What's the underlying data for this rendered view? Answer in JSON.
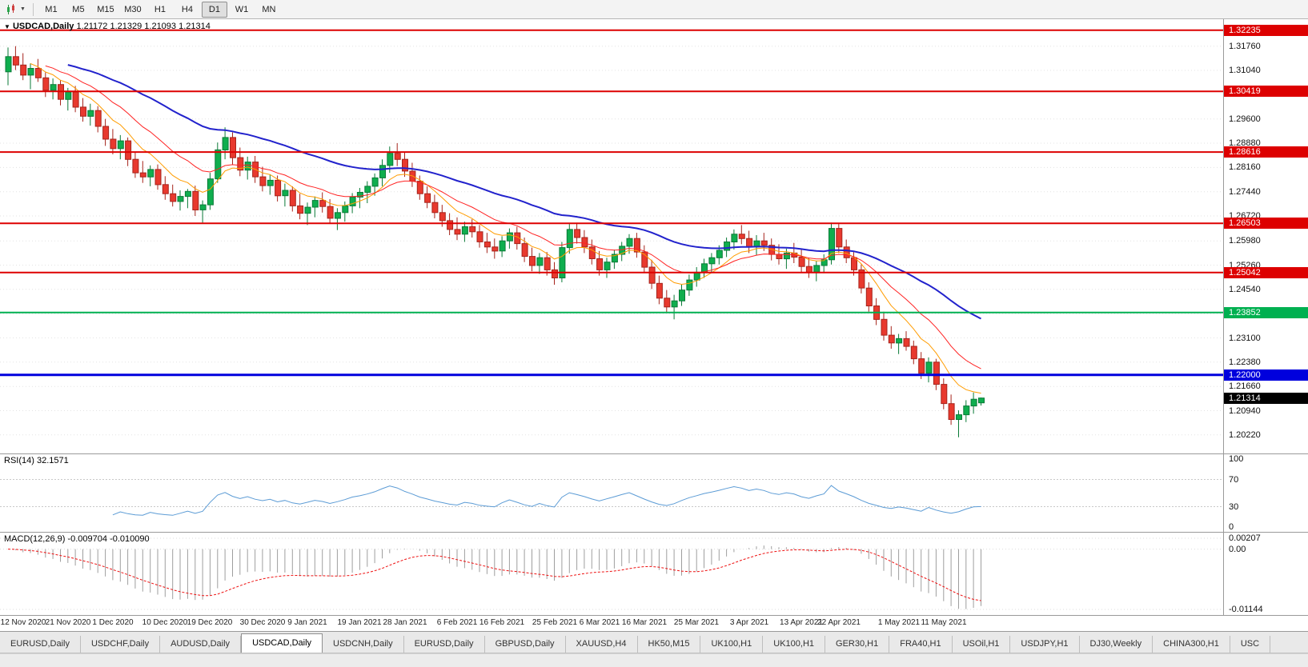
{
  "toolbar": {
    "timeframes": [
      "M1",
      "M5",
      "M15",
      "M30",
      "H1",
      "H4",
      "D1",
      "W1",
      "MN"
    ],
    "active": "D1"
  },
  "chart_data": {
    "type": "candlestick",
    "symbol": "USDCAD",
    "timeframe": "Daily",
    "header_title": "USDCAD,Daily",
    "header_ohlc": "1.21172 1.21329 1.21093 1.21314",
    "price_range": {
      "top": 1.3256,
      "bottom": 1.1967
    },
    "y_axis_labels": [
      "1.31760",
      "1.31040",
      "1.29600",
      "1.28880",
      "1.28160",
      "1.27440",
      "1.26720",
      "1.25980",
      "1.25260",
      "1.24540",
      "1.23820",
      "1.23100",
      "1.22380",
      "1.21660",
      "1.20940",
      "1.20220"
    ],
    "x_axis_labels": [
      [
        "12 Nov 2020",
        2
      ],
      [
        "21 Nov 2020",
        8
      ],
      [
        "1 Dec 2020",
        14
      ],
      [
        "10 Dec 2020",
        21
      ],
      [
        "19 Dec 2020",
        27
      ],
      [
        "30 Dec 2020",
        34
      ],
      [
        "9 Jan 2021",
        40
      ],
      [
        "19 Jan 2021",
        47
      ],
      [
        "28 Jan 2021",
        53
      ],
      [
        "6 Feb 2021",
        60
      ],
      [
        "16 Feb 2021",
        66
      ],
      [
        "25 Feb 2021",
        73
      ],
      [
        "6 Mar 2021",
        79
      ],
      [
        "16 Mar 2021",
        85
      ],
      [
        "25 Mar 2021",
        92
      ],
      [
        "3 Apr 2021",
        99
      ],
      [
        "13 Apr 2021",
        106
      ],
      [
        "22 Apr 2021",
        111
      ],
      [
        "1 May 2021",
        119
      ],
      [
        "11 May 2021",
        125
      ]
    ],
    "ma_periods": [
      8,
      16,
      42
    ],
    "hlines": [
      {
        "value": 1.32235,
        "label": "1.32235",
        "color": "#dd0000",
        "width": 2
      },
      {
        "value": 1.30419,
        "label": "1.30419",
        "color": "#dd0000",
        "width": 2
      },
      {
        "value": 1.28616,
        "label": "1.28616",
        "color": "#dd0000",
        "width": 2
      },
      {
        "value": 1.26503,
        "label": "1.26503",
        "color": "#dd0000",
        "width": 2
      },
      {
        "value": 1.25042,
        "label": "1.25042",
        "color": "#dd0000",
        "width": 2
      },
      {
        "value": 1.23852,
        "label": "1.23852",
        "color": "#00b050",
        "width": 2
      },
      {
        "value": 1.22,
        "label": "1.22000",
        "color": "#0000dd",
        "width": 3
      }
    ],
    "current_price": {
      "value": 1.21314,
      "label": "1.21314"
    },
    "rsi": {
      "header": "RSI(14) 32.1571",
      "period": 14,
      "current": 32.1571,
      "levels": [
        "100",
        "70",
        "30",
        "0"
      ]
    },
    "macd": {
      "header": "MACD(12,26,9) -0.009704 -0.010090",
      "fast": 12,
      "slow": 26,
      "signal": 9,
      "values": [
        -0.009704,
        -0.01009
      ],
      "axis": [
        "0.00207",
        "0.00",
        "-0.01144"
      ]
    },
    "colors": {
      "bull": "#0fae4e",
      "bull_border": "#0a7a37",
      "bear": "#e8392e",
      "bear_border": "#a6241c",
      "ma_fast": "#ff9c00",
      "ma_mid": "#ff2222",
      "ma_slow": "#2222cc",
      "rsi": "#5b9bd5",
      "macd_hist": "#9e9e9e",
      "macd_signal": "#ee1111"
    },
    "candles": [
      [
        1.31,
        1.3172,
        1.306,
        1.3145
      ],
      [
        1.3145,
        1.3176,
        1.3105,
        1.312
      ],
      [
        1.312,
        1.3155,
        1.3075,
        1.309
      ],
      [
        1.309,
        1.3125,
        1.3048,
        1.311
      ],
      [
        1.311,
        1.3138,
        1.307,
        1.3082
      ],
      [
        1.3082,
        1.3098,
        1.3025,
        1.3045
      ],
      [
        1.3045,
        1.308,
        1.3018,
        1.3062
      ],
      [
        1.3062,
        1.3075,
        1.3,
        1.3018
      ],
      [
        1.3018,
        1.3052,
        1.2985,
        1.304
      ],
      [
        1.304,
        1.3058,
        1.298,
        1.2995
      ],
      [
        1.2995,
        1.3022,
        1.2952,
        1.2968
      ],
      [
        1.2968,
        1.3005,
        1.294,
        1.2985
      ],
      [
        1.2985,
        1.2998,
        1.292,
        1.2938
      ],
      [
        1.2938,
        1.296,
        1.288,
        1.29
      ],
      [
        1.29,
        1.293,
        1.2855,
        1.2872
      ],
      [
        1.2872,
        1.2912,
        1.284,
        1.2895
      ],
      [
        1.2895,
        1.2905,
        1.282,
        1.284
      ],
      [
        1.284,
        1.2862,
        1.2785,
        1.28
      ],
      [
        1.28,
        1.2835,
        1.277,
        1.2788
      ],
      [
        1.2788,
        1.2822,
        1.276,
        1.281
      ],
      [
        1.281,
        1.2825,
        1.275,
        1.2765
      ],
      [
        1.2765,
        1.279,
        1.272,
        1.2738
      ],
      [
        1.2738,
        1.2765,
        1.27,
        1.2715
      ],
      [
        1.2715,
        1.2748,
        1.2688,
        1.273
      ],
      [
        1.273,
        1.2752,
        1.2695,
        1.2745
      ],
      [
        1.2745,
        1.2762,
        1.2672,
        1.269
      ],
      [
        1.269,
        1.2718,
        1.2652,
        1.2705
      ],
      [
        1.2705,
        1.28,
        1.269,
        1.2782
      ],
      [
        1.2782,
        1.289,
        1.277,
        1.2868
      ],
      [
        1.2868,
        1.2935,
        1.284,
        1.2905
      ],
      [
        1.2905,
        1.292,
        1.2825,
        1.2845
      ],
      [
        1.2845,
        1.2875,
        1.279,
        1.2808
      ],
      [
        1.2808,
        1.2848,
        1.278,
        1.2832
      ],
      [
        1.2832,
        1.285,
        1.277,
        1.2788
      ],
      [
        1.2788,
        1.2818,
        1.2745,
        1.2762
      ],
      [
        1.2762,
        1.2795,
        1.2735,
        1.2778
      ],
      [
        1.2778,
        1.2792,
        1.2715,
        1.2732
      ],
      [
        1.2732,
        1.2768,
        1.27,
        1.2748
      ],
      [
        1.2748,
        1.276,
        1.2685,
        1.2702
      ],
      [
        1.2702,
        1.2738,
        1.2662,
        1.268
      ],
      [
        1.268,
        1.2712,
        1.2645,
        1.2698
      ],
      [
        1.2698,
        1.273,
        1.2668,
        1.2718
      ],
      [
        1.2718,
        1.2742,
        1.2682,
        1.27
      ],
      [
        1.27,
        1.2722,
        1.2648,
        1.2665
      ],
      [
        1.2665,
        1.2695,
        1.263,
        1.2682
      ],
      [
        1.2682,
        1.2715,
        1.2655,
        1.2702
      ],
      [
        1.2702,
        1.274,
        1.268,
        1.2728
      ],
      [
        1.2728,
        1.2755,
        1.2695,
        1.2742
      ],
      [
        1.2742,
        1.2775,
        1.271,
        1.276
      ],
      [
        1.276,
        1.2798,
        1.2732,
        1.2785
      ],
      [
        1.2785,
        1.284,
        1.276,
        1.2822
      ],
      [
        1.2822,
        1.2878,
        1.28,
        1.2858
      ],
      [
        1.2858,
        1.2888,
        1.282,
        1.284
      ],
      [
        1.284,
        1.2862,
        1.2788,
        1.2805
      ],
      [
        1.2805,
        1.283,
        1.2758,
        1.2775
      ],
      [
        1.2775,
        1.2792,
        1.272,
        1.2738
      ],
      [
        1.2738,
        1.276,
        1.2695,
        1.2712
      ],
      [
        1.2712,
        1.2735,
        1.2665,
        1.2682
      ],
      [
        1.2682,
        1.2705,
        1.264,
        1.2658
      ],
      [
        1.2658,
        1.268,
        1.2615,
        1.2632
      ],
      [
        1.2632,
        1.2668,
        1.26,
        1.2618
      ],
      [
        1.2618,
        1.2655,
        1.2595,
        1.264
      ],
      [
        1.264,
        1.2662,
        1.2608,
        1.2625
      ],
      [
        1.2625,
        1.2645,
        1.2578,
        1.2595
      ],
      [
        1.2595,
        1.2622,
        1.2562,
        1.258
      ],
      [
        1.258,
        1.2605,
        1.2545,
        1.2568
      ],
      [
        1.2568,
        1.2612,
        1.255,
        1.2598
      ],
      [
        1.2598,
        1.2635,
        1.2575,
        1.2622
      ],
      [
        1.2622,
        1.264,
        1.2572,
        1.259
      ],
      [
        1.259,
        1.2608,
        1.2535,
        1.2552
      ],
      [
        1.2552,
        1.2578,
        1.2508,
        1.2525
      ],
      [
        1.2525,
        1.2562,
        1.25,
        1.2548
      ],
      [
        1.2548,
        1.2565,
        1.2495,
        1.2512
      ],
      [
        1.2512,
        1.2535,
        1.2468,
        1.2488
      ],
      [
        1.2488,
        1.2595,
        1.2475,
        1.2578
      ],
      [
        1.2578,
        1.2648,
        1.256,
        1.2632
      ],
      [
        1.2632,
        1.2652,
        1.259,
        1.2608
      ],
      [
        1.2608,
        1.263,
        1.2562,
        1.258
      ],
      [
        1.258,
        1.2602,
        1.2528,
        1.2545
      ],
      [
        1.2545,
        1.2568,
        1.2495,
        1.2512
      ],
      [
        1.2512,
        1.2548,
        1.2488,
        1.2535
      ],
      [
        1.2535,
        1.2572,
        1.2515,
        1.2558
      ],
      [
        1.2558,
        1.2595,
        1.2538,
        1.2582
      ],
      [
        1.2582,
        1.2618,
        1.256,
        1.2605
      ],
      [
        1.2605,
        1.2622,
        1.2548,
        1.2565
      ],
      [
        1.2565,
        1.2585,
        1.2502,
        1.252
      ],
      [
        1.252,
        1.2542,
        1.2455,
        1.2472
      ],
      [
        1.2472,
        1.2495,
        1.241,
        1.2428
      ],
      [
        1.2428,
        1.2452,
        1.2385,
        1.2402
      ],
      [
        1.2402,
        1.2438,
        1.2365,
        1.242
      ],
      [
        1.242,
        1.2468,
        1.2405,
        1.2452
      ],
      [
        1.2452,
        1.2498,
        1.2435,
        1.2482
      ],
      [
        1.2482,
        1.252,
        1.2462,
        1.2505
      ],
      [
        1.2505,
        1.2545,
        1.2488,
        1.253
      ],
      [
        1.253,
        1.2562,
        1.2505,
        1.2548
      ],
      [
        1.2548,
        1.2585,
        1.2528,
        1.257
      ],
      [
        1.257,
        1.2608,
        1.255,
        1.2595
      ],
      [
        1.2595,
        1.2632,
        1.2572,
        1.2618
      ],
      [
        1.2618,
        1.2645,
        1.2588,
        1.2605
      ],
      [
        1.2605,
        1.2628,
        1.2562,
        1.258
      ],
      [
        1.258,
        1.2615,
        1.2555,
        1.2598
      ],
      [
        1.2598,
        1.2622,
        1.2568,
        1.2585
      ],
      [
        1.2585,
        1.2605,
        1.254,
        1.2558
      ],
      [
        1.2558,
        1.2588,
        1.2528,
        1.2545
      ],
      [
        1.2545,
        1.2575,
        1.2515,
        1.2562
      ],
      [
        1.2562,
        1.2592,
        1.2532,
        1.255
      ],
      [
        1.255,
        1.2572,
        1.2505,
        1.2522
      ],
      [
        1.2522,
        1.2548,
        1.2488,
        1.2505
      ],
      [
        1.2505,
        1.2538,
        1.2478,
        1.2525
      ],
      [
        1.2525,
        1.2558,
        1.2502,
        1.2542
      ],
      [
        1.2542,
        1.2652,
        1.2528,
        1.2635
      ],
      [
        1.2635,
        1.2648,
        1.2562,
        1.258
      ],
      [
        1.258,
        1.2602,
        1.2532,
        1.2548
      ],
      [
        1.2548,
        1.2565,
        1.2495,
        1.2512
      ],
      [
        1.2512,
        1.2528,
        1.2442,
        1.2458
      ],
      [
        1.2458,
        1.2475,
        1.2388,
        1.2405
      ],
      [
        1.2405,
        1.2428,
        1.2348,
        1.2365
      ],
      [
        1.2365,
        1.2388,
        1.2302,
        1.2318
      ],
      [
        1.2318,
        1.2345,
        1.2278,
        1.2295
      ],
      [
        1.2295,
        1.2322,
        1.2262,
        1.2308
      ],
      [
        1.2308,
        1.233,
        1.2272,
        1.2285
      ],
      [
        1.2285,
        1.2302,
        1.2232,
        1.2248
      ],
      [
        1.2248,
        1.2268,
        1.2188,
        1.2205
      ],
      [
        1.2205,
        1.2252,
        1.2178,
        1.2238
      ],
      [
        1.2238,
        1.2248,
        1.2155,
        1.2172
      ],
      [
        1.2172,
        1.219,
        1.2098,
        1.2115
      ],
      [
        1.2115,
        1.2142,
        1.2052,
        1.2068
      ],
      [
        1.2068,
        1.2095,
        1.2015,
        1.2082
      ],
      [
        1.2082,
        1.2125,
        1.206,
        1.2108
      ],
      [
        1.2108,
        1.2148,
        1.2085,
        1.2128
      ],
      [
        1.21172,
        1.21329,
        1.21093,
        1.21314
      ]
    ]
  },
  "tabs": {
    "items": [
      "EURUSD,Daily",
      "USDCHF,Daily",
      "AUDUSD,Daily",
      "USDCAD,Daily",
      "USDCNH,Daily",
      "EURUSD,Daily",
      "GBPUSD,Daily",
      "XAUUSD,H4",
      "HK50,M15",
      "UK100,H1",
      "UK100,H1",
      "GER30,H1",
      "FRA40,H1",
      "USOil,H1",
      "USDJPY,H1",
      "DJ30,Weekly",
      "CHINA300,H1",
      "USC"
    ],
    "active_index": 3
  }
}
